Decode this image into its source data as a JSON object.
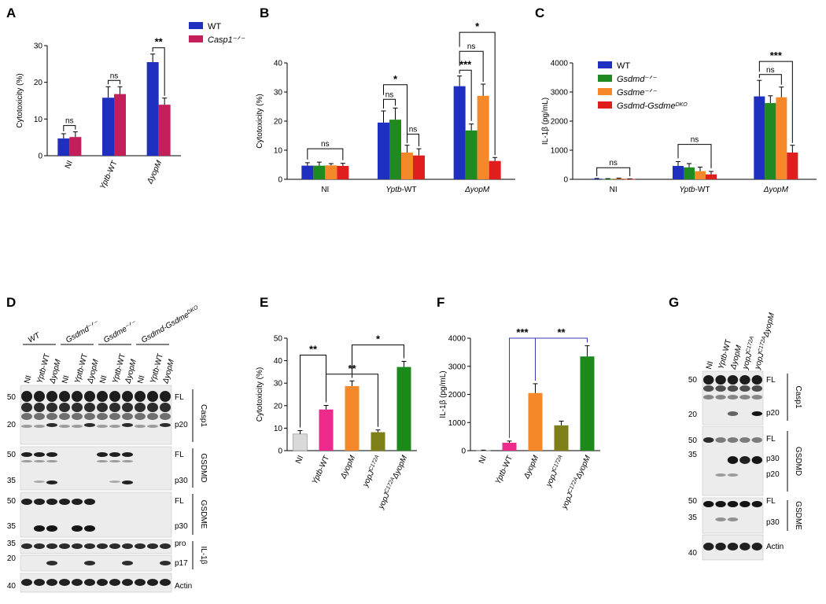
{
  "panels": {
    "A": {
      "letter": "A"
    },
    "B": {
      "letter": "B"
    },
    "C": {
      "letter": "C"
    },
    "D": {
      "letter": "D"
    },
    "E": {
      "letter": "E"
    },
    "F": {
      "letter": "F"
    },
    "G": {
      "letter": "G"
    }
  },
  "colors": {
    "blue": "#1f2fbf",
    "crimson": "#c41f5a",
    "green": "#1f8a1f",
    "orange": "#f5892a",
    "red": "#e01e1e",
    "gray": "#d9d9d9",
    "pink": "#ee2a8c",
    "olive": "#7f7f1a",
    "darkgreen": "#1b8a1b"
  },
  "chart_data": [
    {
      "id": "A",
      "type": "bar",
      "ylabel": "Cytotoxicity (%)",
      "ylim": [
        0,
        30
      ],
      "yticks": [
        0,
        10,
        20,
        30
      ],
      "categories": [
        "NI",
        "Yptb-WT",
        "ΔyopM"
      ],
      "series": [
        {
          "name": "WT",
          "color": "#1f2fbf",
          "values": [
            4.7,
            15.8,
            25.5
          ],
          "errors": [
            1.3,
            3.0,
            2.2
          ]
        },
        {
          "name": "Casp1⁻ᐟ⁻",
          "color": "#c41f5a",
          "values": [
            5.1,
            16.8,
            13.9
          ],
          "errors": [
            1.4,
            2.0,
            1.8
          ]
        }
      ],
      "legend": [
        "WT",
        "Casp1⁻ᐟ⁻"
      ],
      "significance": [
        "ns",
        "ns",
        "**"
      ]
    },
    {
      "id": "B",
      "type": "bar",
      "ylabel": "Cytotoxicity (%)",
      "ylim": [
        0,
        40
      ],
      "yticks": [
        0,
        10,
        20,
        30,
        40
      ],
      "categories": [
        "NI",
        "Yptb-WT",
        "ΔyopM"
      ],
      "series": [
        {
          "name": "WT",
          "color": "#1f2fbf",
          "values": [
            4.7,
            19.5,
            32.0
          ],
          "errors": [
            1.0,
            4.0,
            3.5
          ]
        },
        {
          "name": "Gsdmd⁻ᐟ⁻",
          "color": "#1f8a1f",
          "values": [
            4.7,
            20.5,
            16.8
          ],
          "errors": [
            1.2,
            4.0,
            2.2
          ]
        },
        {
          "name": "Gsdme⁻ᐟ⁻",
          "color": "#f5892a",
          "values": [
            4.8,
            9.2,
            28.7
          ],
          "errors": [
            0.6,
            2.5,
            4.0
          ]
        },
        {
          "name": "Gsdmd-Gsdme DKO",
          "color": "#e01e1e",
          "values": [
            4.6,
            8.2,
            6.3
          ],
          "errors": [
            0.9,
            2.3,
            1.2
          ]
        }
      ],
      "significance": [
        "ns",
        "ns",
        "*",
        "ns",
        "***",
        "ns",
        "*"
      ]
    },
    {
      "id": "C",
      "type": "bar",
      "ylabel": "IL-1β (pg/mL)",
      "ylim": [
        0,
        4000
      ],
      "yticks": [
        0,
        1000,
        2000,
        3000,
        4000
      ],
      "categories": [
        "NI",
        "Yptb-WT",
        "ΔyopM"
      ],
      "series": [
        {
          "name": "WT",
          "color": "#1f2fbf",
          "values": [
            20,
            460,
            2850
          ],
          "errors": [
            10,
            150,
            550
          ]
        },
        {
          "name": "Gsdmd⁻ᐟ⁻",
          "color": "#1f8a1f",
          "values": [
            15,
            410,
            2620
          ],
          "errors": [
            8,
            130,
            250
          ]
        },
        {
          "name": "Gsdme⁻ᐟ⁻",
          "color": "#f5892a",
          "values": [
            25,
            280,
            2820
          ],
          "errors": [
            15,
            140,
            350
          ]
        },
        {
          "name": "Gsdmd-Gsdme DKO",
          "color": "#e01e1e",
          "values": [
            10,
            170,
            920
          ],
          "errors": [
            5,
            100,
            250
          ]
        }
      ],
      "legend": [
        "WT",
        "Gsdmd⁻ᐟ⁻",
        "Gsdme⁻ᐟ⁻",
        "Gsdmd-Gsdme DKO"
      ],
      "significance": [
        "ns",
        "ns",
        "ns",
        "***"
      ]
    },
    {
      "id": "E",
      "type": "bar",
      "ylabel": "Cytotoxicity (%)",
      "ylim": [
        0,
        50
      ],
      "yticks": [
        0,
        10,
        20,
        30,
        40,
        50
      ],
      "categories": [
        "NI",
        "Yptb-WT",
        "ΔyopM",
        "yopJ C172A",
        "yopJ C172A ΔyopM"
      ],
      "colors": [
        "#d9d9d9",
        "#ee2a8c",
        "#f5892a",
        "#7f7f1a",
        "#1b8a1b"
      ],
      "values": [
        7.4,
        18.3,
        28.7,
        8.2,
        37.2
      ],
      "errors": [
        1.5,
        1.8,
        2.3,
        1.0,
        2.5
      ],
      "significance": [
        "**",
        "**",
        "*"
      ]
    },
    {
      "id": "F",
      "type": "bar",
      "ylabel": "IL-1β (pg/mL)",
      "ylim": [
        0,
        4000
      ],
      "yticks": [
        0,
        1000,
        2000,
        3000,
        4000
      ],
      "categories": [
        "NI",
        "Yptb-WT",
        "ΔyopM",
        "yopJ C172A",
        "yopJ C172A ΔyopM"
      ],
      "colors": [
        "#d9d9d9",
        "#ee2a8c",
        "#f5892a",
        "#7f7f1a",
        "#1b8a1b"
      ],
      "values": [
        10,
        280,
        2050,
        900,
        3350
      ],
      "errors": [
        8,
        60,
        330,
        150,
        380
      ],
      "significance": [
        "***",
        "**"
      ]
    }
  ],
  "blot_D": {
    "groups": [
      "WT",
      "Gsdmd⁻ᐟ⁻",
      "Gsdme⁻ᐟ⁻",
      "Gsdmd-Gsdme DKO"
    ],
    "lanes": [
      "NI",
      "Yptb-WT",
      "ΔyopM",
      "NI",
      "Yptb-WT",
      "ΔyopM",
      "NI",
      "Yptb-WT",
      "ΔyopM",
      "NI",
      "Yptb-WT",
      "ΔyopM"
    ],
    "markers": [
      "50",
      "20",
      "50",
      "35",
      "50",
      "35",
      "35",
      "20",
      "40"
    ],
    "bands": [
      "FL",
      "p20",
      "FL",
      "p30",
      "FL",
      "p30",
      "pro",
      "p17",
      "Actin"
    ],
    "proteins": [
      "Casp1",
      "GSDMD",
      "GSDME",
      "IL-1β"
    ]
  },
  "blot_G": {
    "lanes": [
      "NI",
      "Yptb-WT",
      "ΔyopM",
      "yopJ C172A",
      "yopJ C172A ΔyopM"
    ],
    "markers": [
      "50",
      "20",
      "50",
      "35",
      "50",
      "35",
      "40"
    ],
    "bands": [
      "FL",
      "p20",
      "FL",
      "p30",
      "p20",
      "FL",
      "p30",
      "Actin"
    ],
    "proteins": [
      "Casp1",
      "GSDMD",
      "GSDME"
    ]
  }
}
